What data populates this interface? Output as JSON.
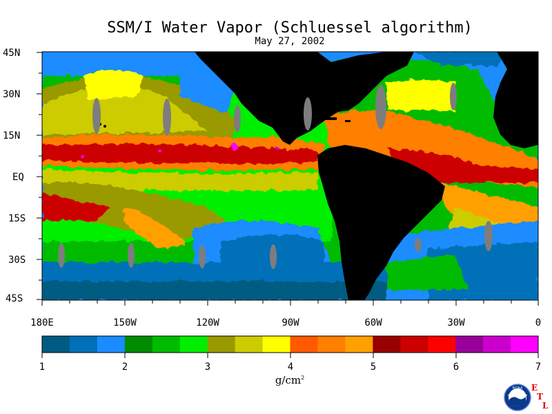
{
  "title": "SSM/I Water Vapor (Schluessel algorithm)",
  "date": "May 27, 2002",
  "latitude_labels": [
    "45N",
    "30N",
    "15N",
    "EQ",
    "15S",
    "30S",
    "45S"
  ],
  "longitude_labels": [
    "180E",
    "150W",
    "120W",
    "90W",
    "60W",
    "30W",
    "0"
  ],
  "colorbar": {
    "unit_base": "g/cm",
    "unit_exp": "2",
    "tick_labels": [
      "1",
      "2",
      "3",
      "4",
      "5",
      "6",
      "7"
    ],
    "range": [
      1,
      7
    ],
    "bin_size": 0.333,
    "colors": [
      "#005b82",
      "#0070b8",
      "#1a8cff",
      "#008c00",
      "#00bb00",
      "#00ee00",
      "#999900",
      "#cccc00",
      "#ffff00",
      "#ff5a00",
      "#ff7f00",
      "#ffa000",
      "#990000",
      "#cc0000",
      "#ff0000",
      "#990099",
      "#cc00cc",
      "#ff00ff"
    ]
  },
  "legend_colors": {
    "land": "#000000",
    "missing_swath": "#7d7d7d"
  },
  "logo": {
    "text": "NOAA",
    "letters": [
      "E",
      "T",
      "L"
    ]
  }
}
